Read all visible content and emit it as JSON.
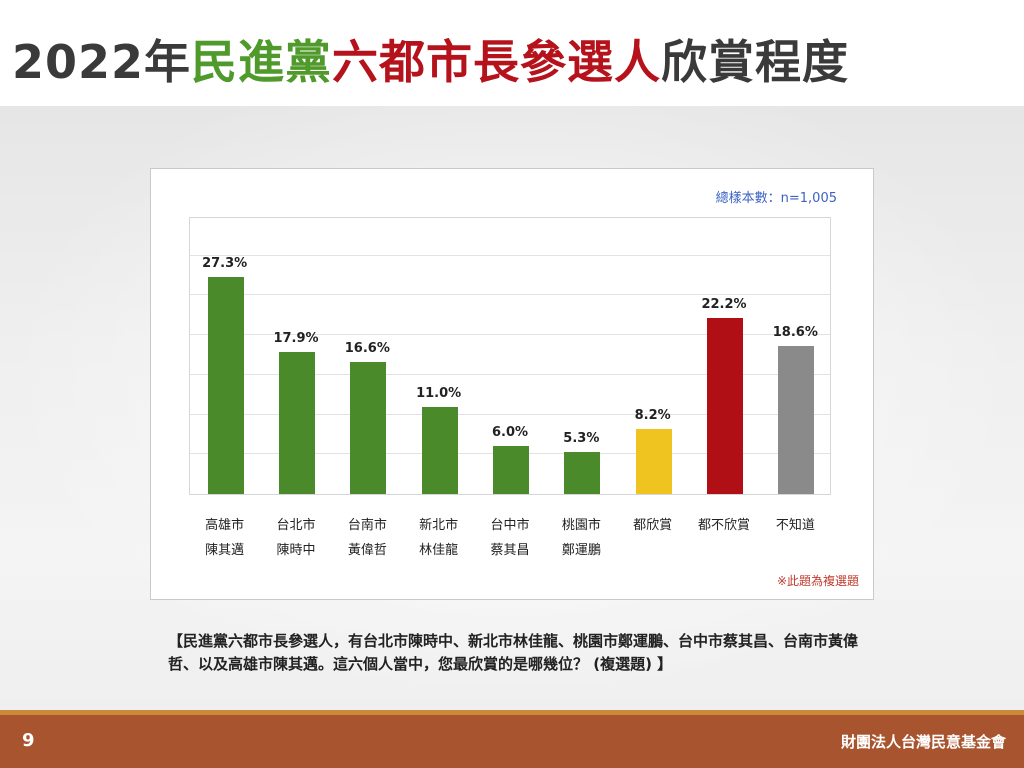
{
  "title": {
    "part1": "2022年",
    "part2": "民進黨",
    "part3": "六都市長參選人",
    "part4": "欣賞程度"
  },
  "chart_data": {
    "type": "bar",
    "sample_label": "總樣本數：n=1,005",
    "note": "※此題為複選題",
    "ylim": [
      0,
      35
    ],
    "categories": [
      "高雄市\n陳其邁",
      "台北市\n陳時中",
      "台南市\n黃偉哲",
      "新北市\n林佳龍",
      "台中市\n蔡其昌",
      "桃園市\n鄭運鵬",
      "都欣賞",
      "都不欣賞",
      "不知道"
    ],
    "values": [
      27.3,
      17.9,
      16.6,
      11.0,
      6.0,
      5.3,
      8.2,
      22.2,
      18.6
    ],
    "value_labels": [
      "27.3%",
      "17.9%",
      "16.6%",
      "11.0%",
      "6.0%",
      "5.3%",
      "8.2%",
      "22.2%",
      "18.6%"
    ],
    "colors": [
      "#4a8a2a",
      "#4a8a2a",
      "#4a8a2a",
      "#4a8a2a",
      "#4a8a2a",
      "#4a8a2a",
      "#f0c420",
      "#b01015",
      "#8a8a8a"
    ],
    "grid": true
  },
  "question": "【民進黨六都市長參選人，有台北市陳時中、新北市林佳龍、桃園市鄭運鵬、台中市蔡其昌、台南市黃偉哲、以及高雄市陳其邁。這六個人當中，您最欣賞的是哪幾位？ (複選題) 】",
  "footer": {
    "page_number": "9",
    "organization": "財團法人台灣民意基金會"
  }
}
